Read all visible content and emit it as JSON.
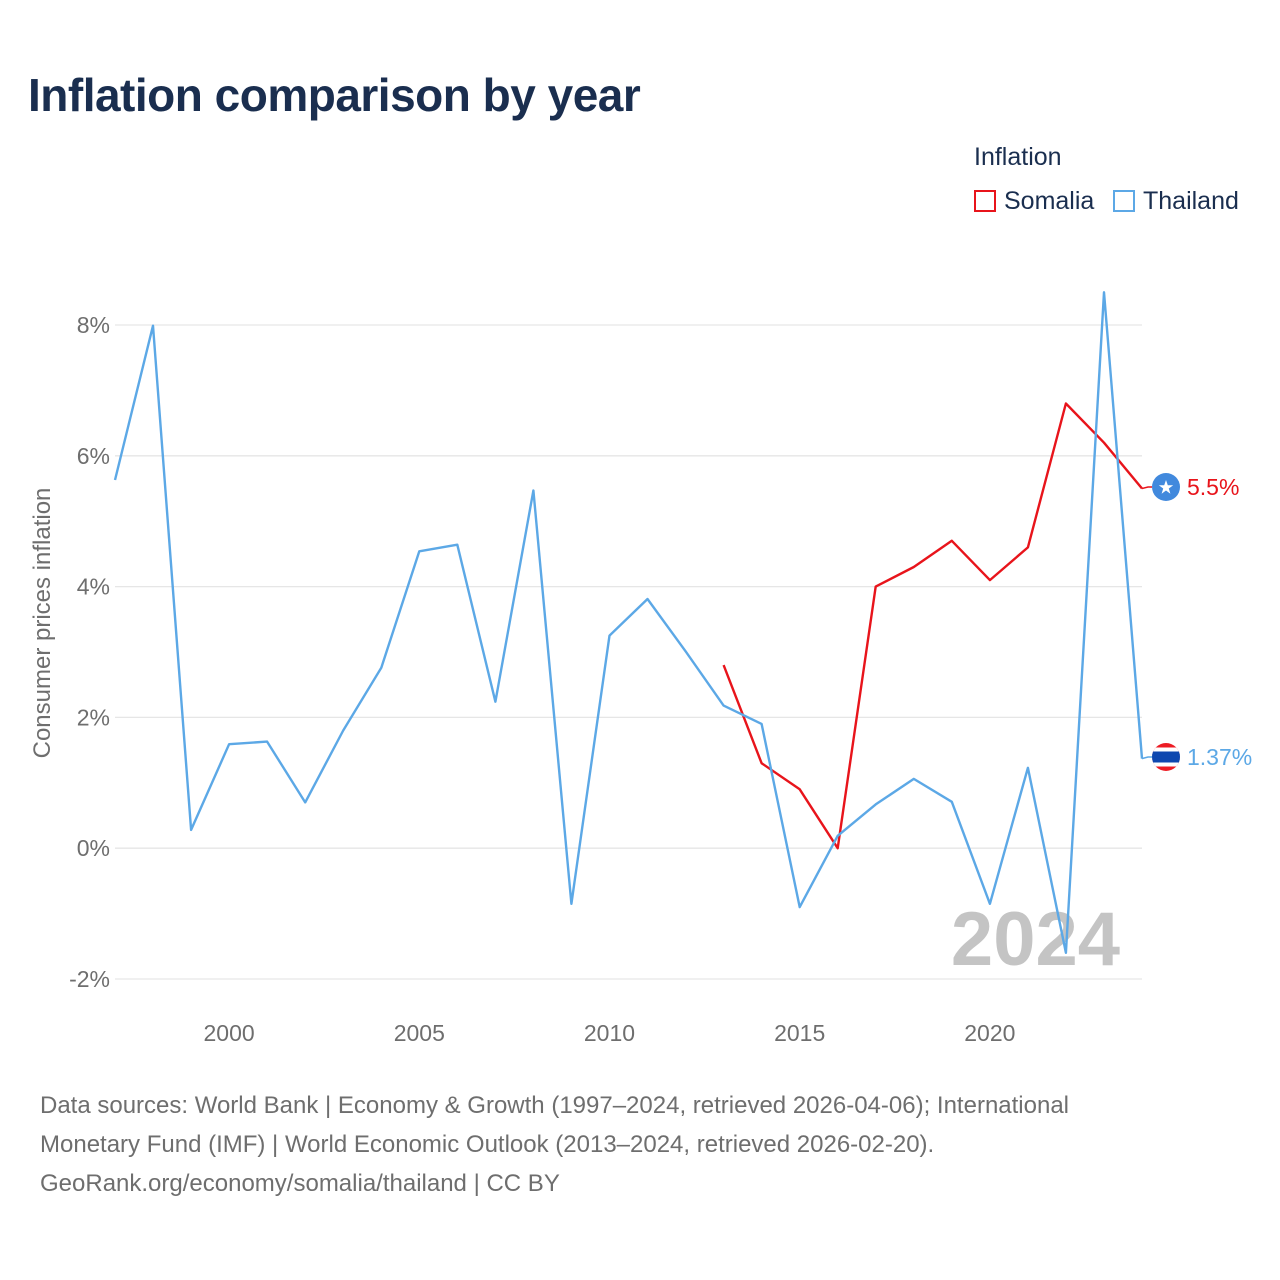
{
  "title": "Inflation comparison by year",
  "legend": {
    "title": "Inflation",
    "items": [
      {
        "label": "Somalia",
        "color": "#e8141b"
      },
      {
        "label": "Thailand",
        "color": "#5ca8e6"
      }
    ]
  },
  "chart_data": {
    "type": "line",
    "title": "Inflation comparison by year",
    "ylabel": "Consumer prices inflation",
    "xlabel": "",
    "ylim": [
      -2,
      8
    ],
    "xlim": [
      1997,
      2024
    ],
    "yticks": [
      -2,
      0,
      2,
      4,
      6,
      8
    ],
    "ytick_labels": [
      "-2%",
      "0%",
      "2%",
      "4%",
      "6%",
      "8%"
    ],
    "xticks": [
      2000,
      2005,
      2010,
      2015,
      2020
    ],
    "xtick_labels": [
      "2000",
      "2005",
      "2010",
      "2015",
      "2020"
    ],
    "year_watermark": "2024",
    "series": [
      {
        "name": "Somalia",
        "color": "#e8141b",
        "end_label": "5.5%",
        "x": [
          2013,
          2014,
          2015,
          2016,
          2017,
          2018,
          2019,
          2020,
          2021,
          2022,
          2023,
          2024
        ],
        "values": [
          2.8,
          1.3,
          0.9,
          0.0,
          4.0,
          4.3,
          4.7,
          4.1,
          4.6,
          6.8,
          6.2,
          5.5
        ]
      },
      {
        "name": "Thailand",
        "color": "#5ca8e6",
        "end_label": "1.37%",
        "x": [
          1997,
          1998,
          1999,
          2000,
          2001,
          2002,
          2003,
          2004,
          2005,
          2006,
          2007,
          2008,
          2009,
          2010,
          2011,
          2012,
          2013,
          2014,
          2015,
          2016,
          2017,
          2018,
          2019,
          2020,
          2021,
          2022,
          2023,
          2024
        ],
        "values": [
          5.63,
          7.99,
          0.28,
          1.59,
          1.63,
          0.7,
          1.8,
          2.76,
          4.54,
          4.64,
          2.24,
          5.47,
          -0.85,
          3.25,
          3.81,
          3.01,
          2.18,
          1.9,
          -0.9,
          0.19,
          0.67,
          1.06,
          0.71,
          -0.85,
          1.23,
          -1.6,
          8.5,
          1.37
        ]
      }
    ]
  },
  "footer": {
    "line1": "Data sources: World Bank | Economy & Growth (1997–2024, retrieved 2026-04-06); International",
    "line2": "Monetary Fund (IMF) | World Economic Outlook (2013–2024, retrieved 2026-02-20).",
    "line3": "GeoRank.org/economy/somalia/thailand | CC BY"
  }
}
